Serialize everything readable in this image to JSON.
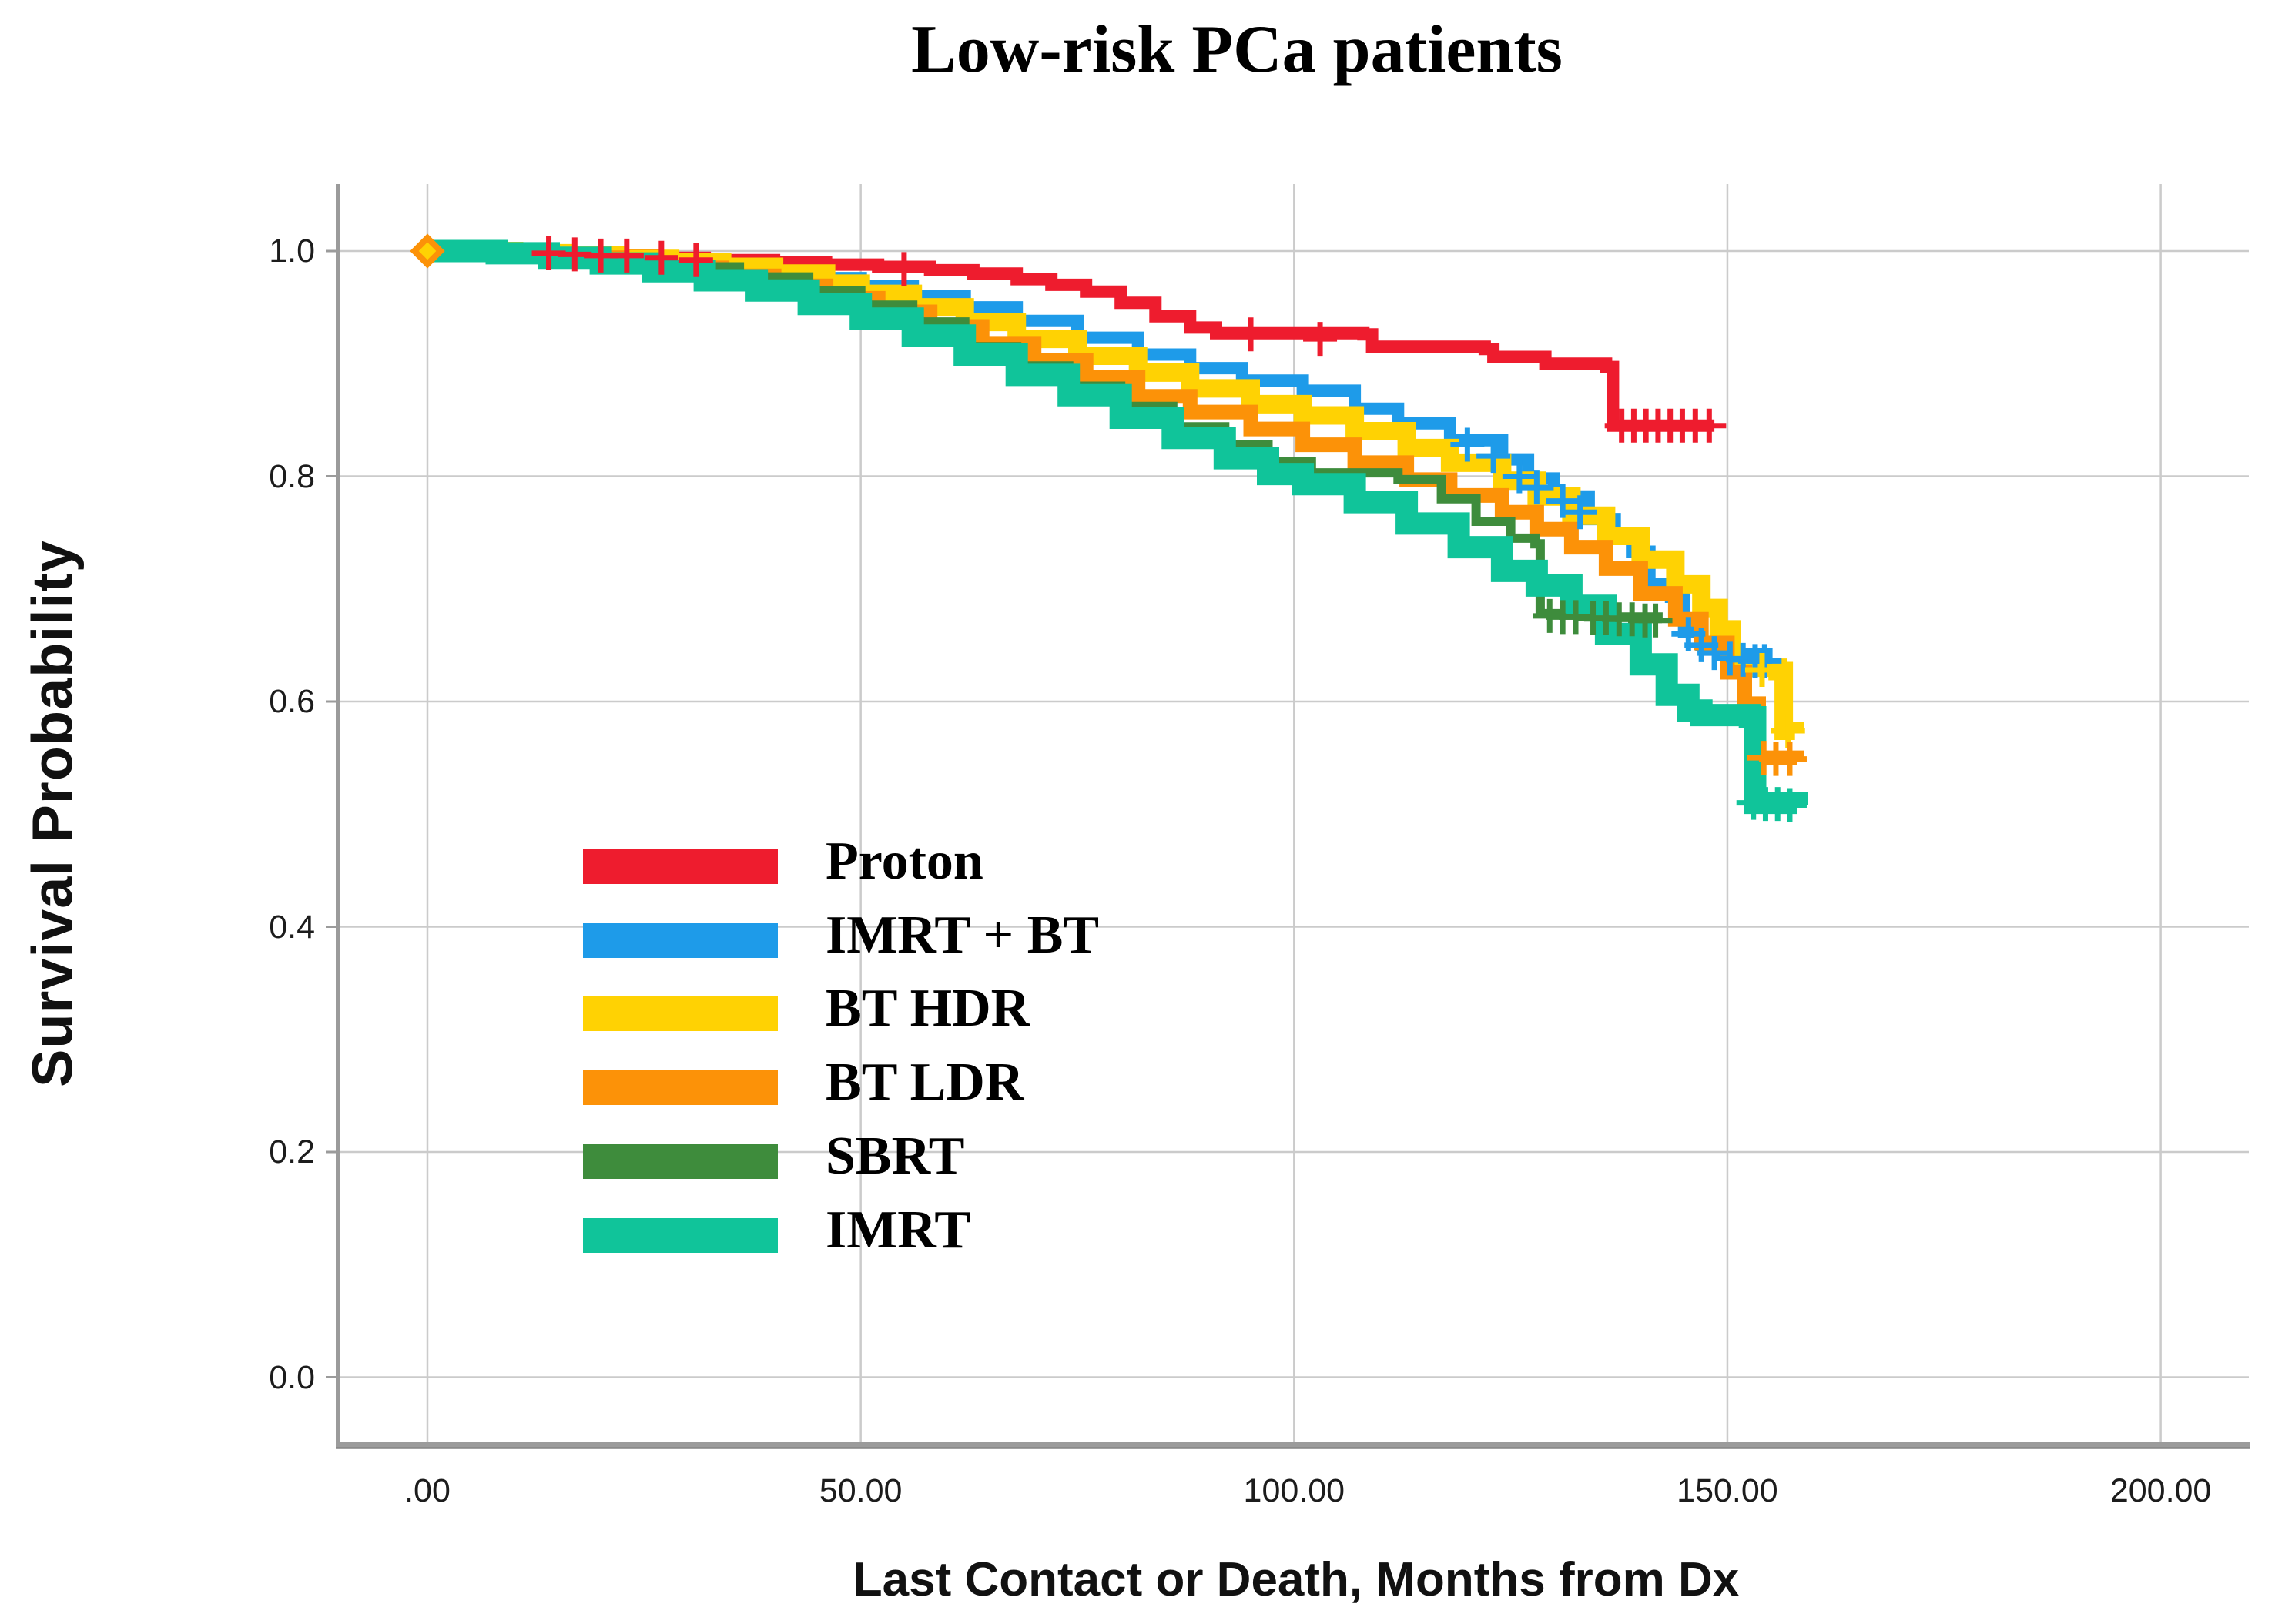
{
  "title": "Low-risk PCa patients",
  "y_axis": {
    "title": "Survival Probability",
    "ticks": [
      {
        "label": "1.0",
        "value": 1.0
      },
      {
        "label": "0.8",
        "value": 0.8
      },
      {
        "label": "0.6",
        "value": 0.6
      },
      {
        "label": "0.4",
        "value": 0.4
      },
      {
        "label": "0.2",
        "value": 0.2
      },
      {
        "label": "0.0",
        "value": 0.0
      }
    ]
  },
  "x_axis": {
    "title": "Last Contact or Death, Months from Dx",
    "ticks": [
      {
        "label": ".00",
        "value": 0
      },
      {
        "label": "50.00",
        "value": 50
      },
      {
        "label": "100.00",
        "value": 100
      },
      {
        "label": "150.00",
        "value": 150
      },
      {
        "label": "200.00",
        "value": 200
      }
    ]
  },
  "legend": [
    {
      "label": "Proton",
      "color": "#ee1c2e"
    },
    {
      "label": "IMRT + BT",
      "color": "#1e9be9"
    },
    {
      "label": "BT HDR",
      "color": "#ffd203"
    },
    {
      "label": "BT LDR",
      "color": "#fc9208"
    },
    {
      "label": "SBRT",
      "color": "#3e8c3c"
    },
    {
      "label": "IMRT",
      "color": "#10c49a"
    }
  ],
  "colors": {
    "gridline": "#cbcbcb",
    "axis": "#9b9b9b",
    "axis_shadow": "#848484",
    "start_marker": "#fc9208",
    "start_marker_inner": "#ffd203"
  },
  "chart_data": {
    "type": "line",
    "subtype": "kaplan-meier-step",
    "title": "Low-risk PCa patients",
    "xlabel": "Last Contact or Death, Months from Dx",
    "ylabel": "Survival Probability",
    "xlim": [
      0,
      210
    ],
    "ylim": [
      0.0,
      1.05
    ],
    "grid": true,
    "legend_position": "inside-left-middle",
    "series": [
      {
        "name": "Proton",
        "color": "#ee1c2e",
        "width": 16,
        "points": [
          [
            0,
            1.0
          ],
          [
            8,
            0.999
          ],
          [
            14,
            0.998
          ],
          [
            20,
            0.996
          ],
          [
            26,
            0.994
          ],
          [
            32,
            0.992
          ],
          [
            40,
            0.99
          ],
          [
            46,
            0.988
          ],
          [
            52,
            0.986
          ],
          [
            58,
            0.983
          ],
          [
            63,
            0.98
          ],
          [
            68,
            0.975
          ],
          [
            72,
            0.97
          ],
          [
            76,
            0.964
          ],
          [
            80,
            0.954
          ],
          [
            84,
            0.942
          ],
          [
            88,
            0.932
          ],
          [
            91,
            0.927
          ],
          [
            108,
            0.926
          ],
          [
            109,
            0.915
          ],
          [
            122,
            0.913
          ],
          [
            123,
            0.906
          ],
          [
            129,
            0.9
          ],
          [
            136,
            0.897
          ],
          [
            136.8,
            0.845
          ],
          [
            148.5,
            0.845
          ]
        ],
        "censors": [
          [
            14,
            0.998
          ],
          [
            17,
            0.997
          ],
          [
            20,
            0.996
          ],
          [
            23,
            0.996
          ],
          [
            27,
            0.994
          ],
          [
            31,
            0.992
          ],
          [
            55,
            0.984
          ],
          [
            95,
            0.926
          ],
          [
            103,
            0.922
          ],
          [
            137.8,
            0.845
          ],
          [
            139.2,
            0.845
          ],
          [
            140.6,
            0.845
          ],
          [
            142,
            0.845
          ],
          [
            143.4,
            0.845
          ],
          [
            144.8,
            0.845
          ],
          [
            146.3,
            0.845
          ],
          [
            147.9,
            0.845
          ]
        ]
      },
      {
        "name": "IMRT + BT",
        "color": "#1e9be9",
        "width": 16,
        "points": [
          [
            0,
            1.0
          ],
          [
            12,
            0.997
          ],
          [
            20,
            0.993
          ],
          [
            28,
            0.988
          ],
          [
            36,
            0.982
          ],
          [
            43,
            0.976
          ],
          [
            50,
            0.969
          ],
          [
            56,
            0.96
          ],
          [
            62,
            0.95
          ],
          [
            68,
            0.938
          ],
          [
            75,
            0.923
          ],
          [
            82,
            0.908
          ],
          [
            88,
            0.896
          ],
          [
            94,
            0.885
          ],
          [
            101,
            0.876
          ],
          [
            107,
            0.86
          ],
          [
            112,
            0.847
          ],
          [
            118,
            0.832
          ],
          [
            124,
            0.815
          ],
          [
            127,
            0.798
          ],
          [
            130,
            0.782
          ],
          [
            134,
            0.762
          ],
          [
            137,
            0.746
          ],
          [
            139,
            0.733
          ],
          [
            141,
            0.704
          ],
          [
            143.5,
            0.693
          ],
          [
            145,
            0.662
          ],
          [
            147,
            0.65
          ],
          [
            149,
            0.642
          ],
          [
            154.5,
            0.636
          ]
        ],
        "censors": [
          [
            120,
            0.828
          ],
          [
            123,
            0.818
          ],
          [
            126,
            0.8
          ],
          [
            128,
            0.79
          ],
          [
            131,
            0.778
          ],
          [
            133,
            0.768
          ],
          [
            145.5,
            0.66
          ],
          [
            147,
            0.65
          ],
          [
            148.5,
            0.643
          ],
          [
            150.3,
            0.638
          ],
          [
            151.8,
            0.637
          ],
          [
            153.2,
            0.636
          ],
          [
            154.3,
            0.636
          ]
        ]
      },
      {
        "name": "BT HDR",
        "color": "#ffd203",
        "width": 24,
        "points": [
          [
            0,
            1.0
          ],
          [
            10,
            0.998
          ],
          [
            16,
            0.996
          ],
          [
            22,
            0.993
          ],
          [
            28,
            0.99
          ],
          [
            34,
            0.986
          ],
          [
            40,
            0.98
          ],
          [
            46,
            0.971
          ],
          [
            50,
            0.962
          ],
          [
            56,
            0.95
          ],
          [
            62,
            0.937
          ],
          [
            68,
            0.922
          ],
          [
            75,
            0.907
          ],
          [
            82,
            0.892
          ],
          [
            88,
            0.878
          ],
          [
            95,
            0.864
          ],
          [
            101,
            0.854
          ],
          [
            107,
            0.84
          ],
          [
            113,
            0.825
          ],
          [
            118,
            0.812
          ],
          [
            124,
            0.796
          ],
          [
            128,
            0.782
          ],
          [
            132,
            0.765
          ],
          [
            136,
            0.747
          ],
          [
            140,
            0.726
          ],
          [
            144,
            0.704
          ],
          [
            147,
            0.683
          ],
          [
            149,
            0.664
          ],
          [
            150.5,
            0.63
          ],
          [
            155.8,
            0.627
          ],
          [
            156.5,
            0.574
          ],
          [
            157.8,
            0.572
          ]
        ],
        "censors": [
          [
            154,
            0.628
          ],
          [
            157,
            0.574
          ]
        ]
      },
      {
        "name": "BT LDR",
        "color": "#fc9208",
        "width": 19,
        "points": [
          [
            0,
            1.0
          ],
          [
            10,
            0.997
          ],
          [
            16,
            0.994
          ],
          [
            22,
            0.99
          ],
          [
            28,
            0.985
          ],
          [
            34,
            0.978
          ],
          [
            40,
            0.969
          ],
          [
            46,
            0.958
          ],
          [
            52,
            0.946
          ],
          [
            58,
            0.933
          ],
          [
            64,
            0.918
          ],
          [
            70,
            0.903
          ],
          [
            76,
            0.888
          ],
          [
            82,
            0.871
          ],
          [
            88,
            0.857
          ],
          [
            95,
            0.842
          ],
          [
            101,
            0.828
          ],
          [
            107,
            0.812
          ],
          [
            113,
            0.797
          ],
          [
            118,
            0.783
          ],
          [
            124,
            0.768
          ],
          [
            128,
            0.753
          ],
          [
            132,
            0.737
          ],
          [
            136,
            0.718
          ],
          [
            140,
            0.696
          ],
          [
            144,
            0.673
          ],
          [
            147,
            0.652
          ],
          [
            150,
            0.626
          ],
          [
            152,
            0.598
          ],
          [
            153.6,
            0.55
          ],
          [
            158,
            0.548
          ]
        ],
        "censors": [
          [
            154.2,
            0.55
          ],
          [
            155.6,
            0.549
          ],
          [
            157.2,
            0.549
          ]
        ]
      },
      {
        "name": "SBRT",
        "color": "#3e8c3c",
        "width": 12,
        "points": [
          [
            0,
            1.0
          ],
          [
            12,
            0.997
          ],
          [
            20,
            0.992
          ],
          [
            28,
            0.986
          ],
          [
            36,
            0.977
          ],
          [
            44,
            0.965
          ],
          [
            50,
            0.952
          ],
          [
            56,
            0.937
          ],
          [
            62,
            0.915
          ],
          [
            68,
            0.898
          ],
          [
            74,
            0.88
          ],
          [
            80,
            0.862
          ],
          [
            86,
            0.844
          ],
          [
            92,
            0.828
          ],
          [
            97,
            0.813
          ],
          [
            102,
            0.803
          ],
          [
            112,
            0.797
          ],
          [
            117,
            0.78
          ],
          [
            121,
            0.76
          ],
          [
            125,
            0.745
          ],
          [
            127.8,
            0.74
          ],
          [
            128.4,
            0.678
          ],
          [
            134,
            0.675
          ],
          [
            142,
            0.672
          ]
        ],
        "censors": [
          [
            129.5,
            0.676
          ],
          [
            131,
            0.675
          ],
          [
            132.5,
            0.675
          ],
          [
            134.5,
            0.674
          ],
          [
            136,
            0.674
          ],
          [
            137.5,
            0.673
          ],
          [
            139,
            0.673
          ],
          [
            140.5,
            0.672
          ],
          [
            141.7,
            0.672
          ]
        ]
      },
      {
        "name": "IMRT",
        "color": "#10c49a",
        "width": 29,
        "points": [
          [
            0,
            1.0
          ],
          [
            8,
            0.998
          ],
          [
            14,
            0.994
          ],
          [
            20,
            0.989
          ],
          [
            26,
            0.982
          ],
          [
            32,
            0.974
          ],
          [
            38,
            0.965
          ],
          [
            44,
            0.953
          ],
          [
            50,
            0.94
          ],
          [
            56,
            0.925
          ],
          [
            62,
            0.908
          ],
          [
            68,
            0.89
          ],
          [
            74,
            0.872
          ],
          [
            80,
            0.852
          ],
          [
            86,
            0.834
          ],
          [
            92,
            0.816
          ],
          [
            97,
            0.802
          ],
          [
            101,
            0.793
          ],
          [
            107,
            0.777
          ],
          [
            113,
            0.758
          ],
          [
            119,
            0.737
          ],
          [
            124,
            0.716
          ],
          [
            128,
            0.703
          ],
          [
            132,
            0.685
          ],
          [
            136,
            0.66
          ],
          [
            140,
            0.633
          ],
          [
            143,
            0.606
          ],
          [
            145.5,
            0.592
          ],
          [
            147,
            0.588
          ],
          [
            152.6,
            0.586
          ],
          [
            153.2,
            0.51
          ],
          [
            158,
            0.508
          ]
        ],
        "censors": [
          [
            153,
            0.51
          ],
          [
            154.4,
            0.509
          ],
          [
            155.8,
            0.509
          ],
          [
            157.2,
            0.508
          ]
        ]
      }
    ]
  }
}
